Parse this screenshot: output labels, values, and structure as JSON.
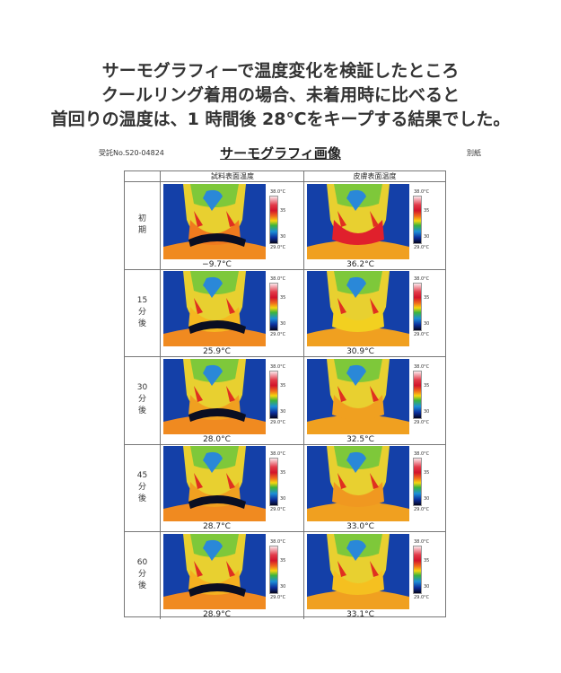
{
  "headline": [
    "サーモグラフィーで温度変化を検証したところ",
    "クールリング着用の場合、未着用時に比べると",
    "首回りの温度は、1 時間後 28℃をキープする結果でした。"
  ],
  "document": {
    "ref_no": "受託No.S20-04824",
    "title": "サーモグラフィ画像",
    "attachment": "別紙",
    "columns": [
      "試料表面温度",
      "皮膚表面温度"
    ],
    "colorbar": {
      "max": "38.0°C",
      "mid": "35",
      "low": "30",
      "min": "29.0°C"
    },
    "rows": [
      {
        "label": [
          "初",
          "期"
        ],
        "sample": "−9.7°C",
        "skin": "36.2°C"
      },
      {
        "label": [
          "15",
          "分",
          "後"
        ],
        "sample": "25.9°C",
        "skin": "30.9°C"
      },
      {
        "label": [
          "30",
          "分",
          "後"
        ],
        "sample": "28.0°C",
        "skin": "32.5°C"
      },
      {
        "label": [
          "45",
          "分",
          "後"
        ],
        "sample": "28.7°C",
        "skin": "33.0°C"
      },
      {
        "label": [
          "60",
          "分",
          "後"
        ],
        "sample": "28.9°C",
        "skin": "33.1°C"
      }
    ]
  }
}
